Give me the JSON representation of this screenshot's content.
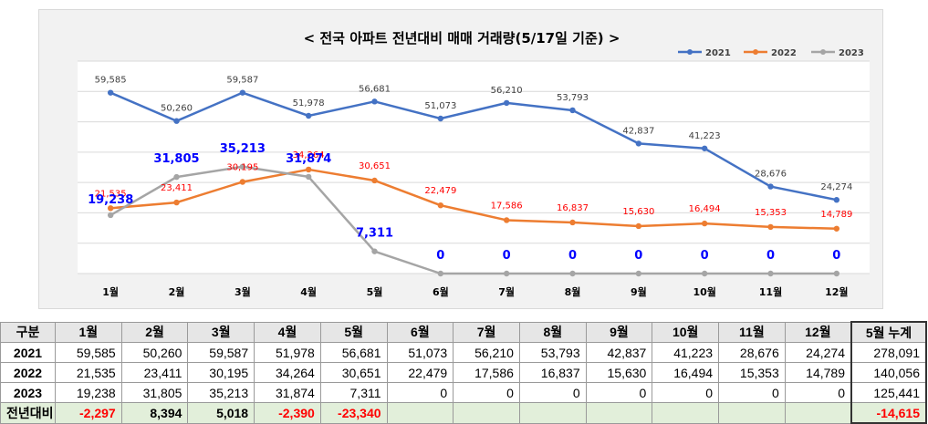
{
  "chart_data": {
    "type": "line",
    "title": "< 전국 아파트 전년대비 매매 거래량(5/17일 기준) >",
    "categories": [
      "1월",
      "2월",
      "3월",
      "4월",
      "5월",
      "6월",
      "7월",
      "8월",
      "9월",
      "10월",
      "11월",
      "12월"
    ],
    "series": [
      {
        "name": "2021",
        "color": "#4472c4",
        "values": [
          59585,
          50260,
          59587,
          51978,
          56681,
          51073,
          56210,
          53793,
          42837,
          41223,
          28676,
          24274
        ],
        "labels": [
          "59,585",
          "50,260",
          "59,587",
          "51,978",
          "56,681",
          "51,073",
          "56,210",
          "53,793",
          "42,837",
          "41,223",
          "28,676",
          "24,274"
        ],
        "label_color": "#404040"
      },
      {
        "name": "2022",
        "color": "#ed7d31",
        "values": [
          21535,
          23411,
          30195,
          34264,
          30651,
          22479,
          17586,
          16837,
          15630,
          16494,
          15353,
          14789
        ],
        "labels": [
          "21,535",
          "23,411",
          "30,195",
          "34,264",
          "30,651",
          "22,479",
          "17,586",
          "16,837",
          "15,630",
          "16,494",
          "15,353",
          "14,789"
        ],
        "label_color": "#ff0000"
      },
      {
        "name": "2023",
        "color": "#a5a5a5",
        "values": [
          19238,
          31805,
          35213,
          31874,
          7311,
          0,
          0,
          0,
          0,
          0,
          0,
          0
        ],
        "labels": [
          "19,238",
          "31,805",
          "35,213",
          "31,874",
          "7,311",
          "0",
          "0",
          "0",
          "0",
          "0",
          "0",
          "0"
        ],
        "label_color": "#0000ff"
      }
    ],
    "ylim": [
      0,
      70000
    ],
    "grid": true,
    "legend": "top-right",
    "xlabel": "",
    "ylabel": ""
  },
  "table": {
    "header": [
      "구분",
      "1월",
      "2월",
      "3월",
      "4월",
      "5월",
      "6월",
      "7월",
      "8월",
      "9월",
      "10월",
      "11월",
      "12월",
      "5월 누계"
    ],
    "rows": [
      {
        "label": "2021",
        "cells": [
          "59,585",
          "50,260",
          "59,587",
          "51,978",
          "56,681",
          "51,073",
          "56,210",
          "53,793",
          "42,837",
          "41,223",
          "28,676",
          "24,274",
          "278,091"
        ]
      },
      {
        "label": "2022",
        "cells": [
          "21,535",
          "23,411",
          "30,195",
          "34,264",
          "30,651",
          "22,479",
          "17,586",
          "16,837",
          "15,630",
          "16,494",
          "15,353",
          "14,789",
          "140,056"
        ]
      },
      {
        "label": "2023",
        "cells": [
          "19,238",
          "31,805",
          "35,213",
          "31,874",
          "7,311",
          "0",
          "0",
          "0",
          "0",
          "0",
          "0",
          "0",
          "125,441"
        ]
      }
    ],
    "diff": {
      "label": "전년대비",
      "cells": [
        "-2,297",
        "8,394",
        "5,018",
        "-2,390",
        "-23,340",
        "",
        "",
        "",
        "",
        "",
        "",
        "",
        "-14,615"
      ]
    }
  }
}
